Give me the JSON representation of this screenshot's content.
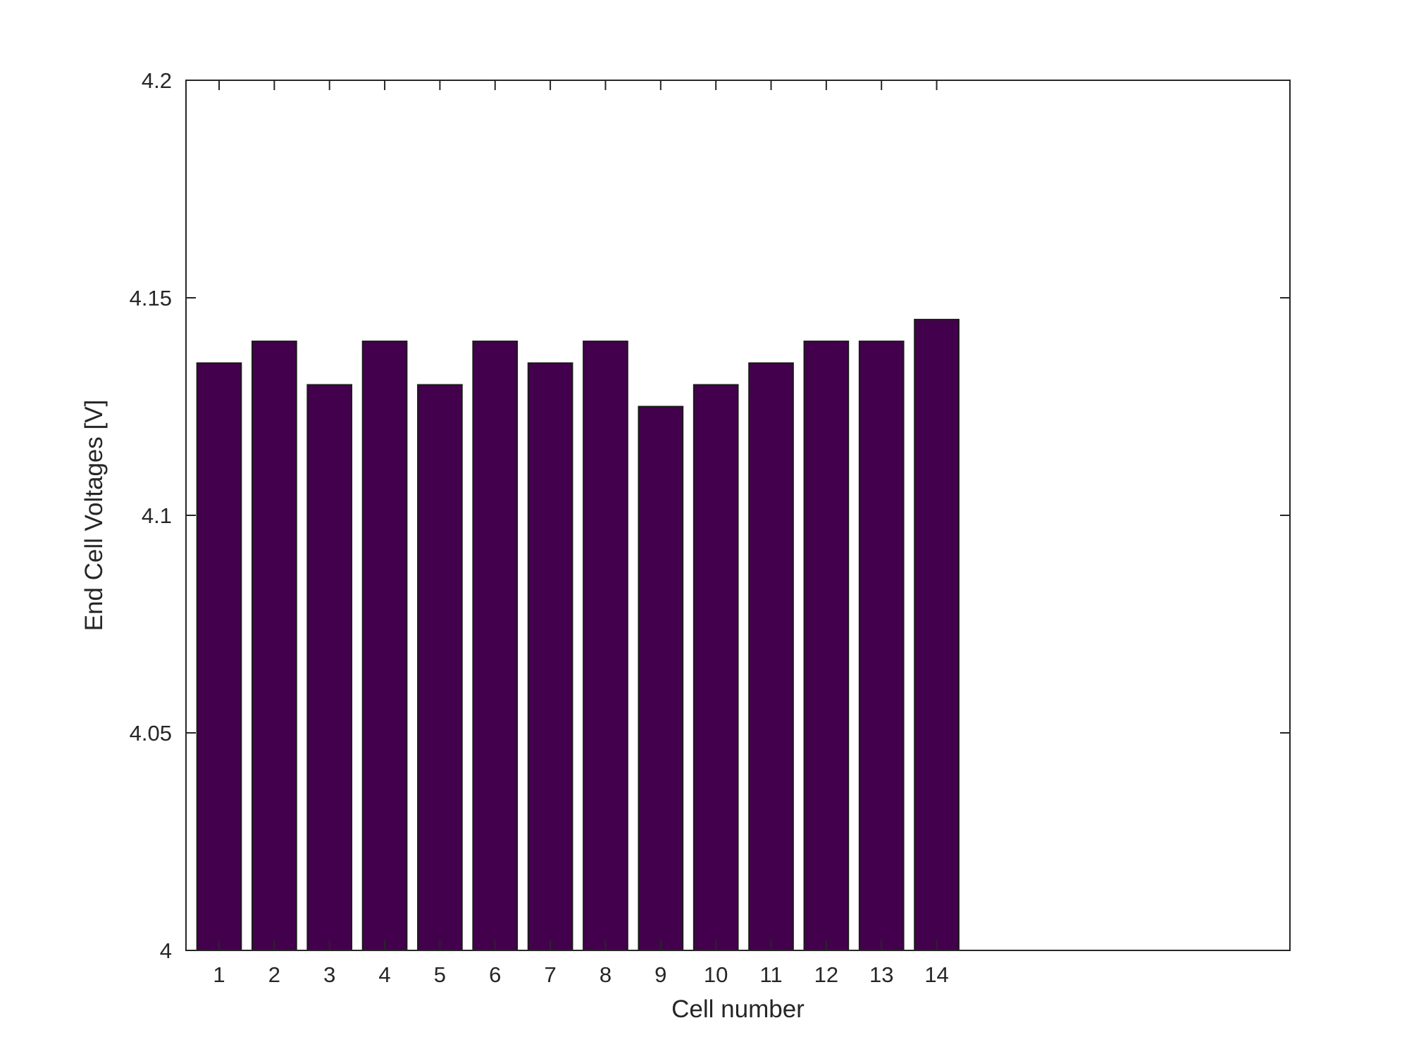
{
  "chart_data": {
    "type": "bar",
    "title": "",
    "xlabel": "Cell number",
    "ylabel": "End Cell Voltages [V]",
    "categories": [
      "1",
      "2",
      "3",
      "4",
      "5",
      "6",
      "7",
      "8",
      "9",
      "10",
      "11",
      "12",
      "13",
      "14"
    ],
    "values": [
      4.135,
      4.14,
      4.13,
      4.14,
      4.13,
      4.14,
      4.135,
      4.14,
      4.125,
      4.13,
      4.135,
      4.14,
      4.14,
      4.145
    ],
    "xlim": [
      0.4,
      20.4
    ],
    "ylim": [
      4.0,
      4.2
    ],
    "yticks": [
      4.0,
      4.05,
      4.1,
      4.15,
      4.2
    ],
    "ytick_labels": [
      "4",
      "4.05",
      "4.1",
      "4.15",
      "4.2"
    ],
    "bar_color": "#43004c",
    "grid": false,
    "legend": "none"
  }
}
